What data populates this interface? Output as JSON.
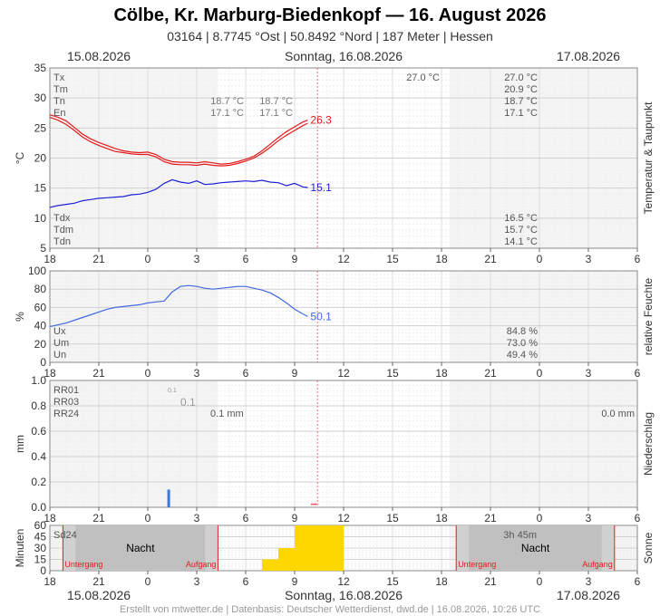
{
  "title": "Cölbe, Kr. Marburg-Biedenkopf  —  16. August 2026",
  "subtitle": "03164  |  8.7745 °Ost  |  50.8492 °Nord  |  187 Meter  |  Hessen",
  "dates": {
    "left": "15.08.2026",
    "center": "Sonntag, 16.08.2026",
    "right": "17.08.2026"
  },
  "footer": "Erstellt von mtwetter.de | Datenbasis: Deutscher Wetterdienst, dwd.de | 16.08.2026, 10:26 UTC",
  "colors": {
    "temp": "#e41a1c",
    "dew": "#1f1fd6",
    "humidity": "#4169e1",
    "precip": "#3c78d8",
    "sun": "#ffd700",
    "night": "#c6c6c6",
    "grid": "#e6e6e6",
    "minorgrid": "#f2f2f2",
    "nightline": "#e41a1c"
  },
  "chart_data": [
    {
      "type": "line",
      "ylabel": "°C",
      "right_label": "Temperatur & Taupunkt",
      "ylim": [
        5,
        35
      ],
      "yticks": [
        "5",
        "10",
        "15",
        "20",
        "25",
        "30",
        "35"
      ],
      "x_unit": "hours since 15.08.2026 18:00",
      "xlim": [
        0,
        36
      ],
      "xticks": [
        "18",
        "21",
        "0",
        "3",
        "6",
        "9",
        "12",
        "15",
        "18",
        "21",
        "0",
        "3",
        "6"
      ],
      "series": [
        {
          "x": [
            0,
            0.5,
            1,
            1.5,
            2,
            2.5,
            3,
            3.5,
            4,
            4.5,
            5,
            5.5,
            6,
            6.5,
            7,
            7.5,
            8,
            8.5,
            9,
            9.5,
            10,
            10.5,
            11,
            11.5,
            12,
            12.5,
            13,
            13.5,
            14,
            14.5,
            15,
            15.5,
            15.8
          ],
          "values": [
            27.2,
            26.8,
            26.2,
            25.1,
            24.0,
            23.2,
            22.6,
            22.1,
            21.6,
            21.2,
            21.0,
            20.9,
            21.0,
            20.6,
            19.8,
            19.4,
            19.3,
            19.3,
            19.2,
            19.4,
            19.2,
            19.0,
            19.1,
            19.4,
            19.8,
            20.3,
            21.2,
            22.3,
            23.4,
            24.4,
            25.2,
            26.0,
            26.3
          ]
        },
        {
          "x": [
            0,
            0.5,
            1,
            1.5,
            2,
            2.5,
            3,
            3.5,
            4,
            4.5,
            5,
            5.5,
            6,
            6.5,
            7,
            7.5,
            8,
            8.5,
            9,
            9.5,
            10,
            10.5,
            11,
            11.5,
            12,
            12.5,
            13,
            13.5,
            14,
            14.5,
            15,
            15.5,
            15.8
          ],
          "values": [
            26.8,
            26.3,
            25.6,
            24.6,
            23.5,
            22.7,
            22.1,
            21.6,
            21.1,
            20.9,
            20.7,
            20.6,
            20.6,
            20.2,
            19.4,
            19.0,
            18.9,
            18.9,
            18.8,
            19.0,
            18.8,
            18.7,
            18.8,
            19.1,
            19.5,
            20.0,
            20.8,
            21.8,
            22.9,
            23.8,
            24.6,
            25.4,
            25.8
          ]
        },
        {
          "x": [
            0,
            0.5,
            1,
            1.5,
            2,
            2.5,
            3,
            3.5,
            4,
            4.5,
            5,
            5.5,
            6,
            6.5,
            7,
            7.5,
            8,
            8.5,
            9,
            9.5,
            10,
            10.5,
            11,
            11.5,
            12,
            12.5,
            13,
            13.5,
            14,
            14.5,
            15,
            15.5,
            15.8
          ],
          "values": [
            11.8,
            12.1,
            12.3,
            12.5,
            12.9,
            13.1,
            13.3,
            13.4,
            13.5,
            13.6,
            13.9,
            14.0,
            14.3,
            14.8,
            15.8,
            16.4,
            16.0,
            15.8,
            16.2,
            15.6,
            15.7,
            15.9,
            16.0,
            16.1,
            16.2,
            16.1,
            16.3,
            16.0,
            15.9,
            15.4,
            15.8,
            15.2,
            15.1
          ]
        }
      ],
      "series_colors": [
        "#e41a1c",
        "#e41a1c",
        "#1f1fd6"
      ],
      "end_labels": [
        {
          "text": "26.3",
          "value": 26.3,
          "color": "#e41a1c"
        },
        {
          "text": "15.1",
          "value": 15.1,
          "color": "#1f1fd6"
        }
      ],
      "stats_top": [
        {
          "label": "Tx",
          "c1": "",
          "c2": "",
          "c3": "27.0 °C",
          "c4": "27.0 °C"
        },
        {
          "label": "Tm",
          "c1": "",
          "c2": "",
          "c3": "",
          "c4": "20.9 °C"
        },
        {
          "label": "Tn",
          "c1": "18.7 °C",
          "c2": "18.7 °C",
          "c3": "",
          "c4": "18.7 °C"
        },
        {
          "label": "En",
          "c1": "17.1 °C",
          "c2": "17.1 °C",
          "c3": "",
          "c4": "17.1 °C"
        }
      ],
      "stats_bottom": [
        {
          "label": "Tdx",
          "value": "16.5 °C"
        },
        {
          "label": "Tdm",
          "value": "15.7 °C"
        },
        {
          "label": "Tdn",
          "value": "14.1 °C"
        }
      ]
    },
    {
      "type": "line",
      "ylabel": "%",
      "right_label": "relative Feuchte",
      "ylim": [
        0,
        100
      ],
      "yticks": [
        "0",
        "20",
        "40",
        "60",
        "80",
        "100"
      ],
      "xlim": [
        0,
        36
      ],
      "xticks": [
        "18",
        "21",
        "0",
        "3",
        "6",
        "9",
        "12",
        "15",
        "18",
        "21",
        "0",
        "3",
        "6"
      ],
      "series": [
        {
          "x": [
            0,
            0.5,
            1,
            1.5,
            2,
            2.5,
            3,
            3.5,
            4,
            4.5,
            5,
            5.5,
            6,
            6.5,
            7,
            7.5,
            8,
            8.5,
            9,
            9.5,
            10,
            10.5,
            11,
            11.5,
            12,
            12.5,
            13,
            13.5,
            14,
            14.5,
            15,
            15.5,
            15.8
          ],
          "values": [
            39,
            41,
            43,
            46,
            49,
            52,
            55,
            58,
            60,
            61,
            62,
            63,
            65,
            66,
            67,
            77,
            83,
            84,
            83,
            81,
            80,
            81,
            82,
            83,
            83,
            81,
            79,
            76,
            71,
            65,
            58,
            53,
            50.1
          ]
        }
      ],
      "series_colors": [
        "#4169e1"
      ],
      "end_labels": [
        {
          "text": "50.1",
          "value": 50.1,
          "color": "#4169e1"
        }
      ],
      "stats": [
        {
          "label": "Ux",
          "value": "84.8 %"
        },
        {
          "label": "Um",
          "value": "73.0 %"
        },
        {
          "label": "Un",
          "value": "49.4 %"
        }
      ]
    },
    {
      "type": "bar",
      "ylabel": "mm",
      "right_label": "Niederschlag",
      "ylim": [
        0,
        1.0
      ],
      "yticks": [
        "0.0",
        "0.2",
        "0.4",
        "0.6",
        "0.8",
        "1.0"
      ],
      "xlim": [
        0,
        36
      ],
      "xticks": [
        "18",
        "21",
        "0",
        "3",
        "6",
        "9",
        "12",
        "15",
        "18",
        "21",
        "0",
        "3",
        "6"
      ],
      "bars": [
        {
          "x": 7.2,
          "value": 0.14
        }
      ],
      "stats": [
        {
          "label": "RR01",
          "small": "0.1"
        },
        {
          "label": "RR03",
          "mid": "0.1"
        },
        {
          "label": "RR24",
          "val1": "0.1 mm",
          "val2": "0.0 mm"
        }
      ]
    },
    {
      "type": "bar",
      "ylabel": "Minuten",
      "right_label": "Sonne",
      "ylim": [
        0,
        60
      ],
      "yticks": [
        "0",
        "15",
        "30",
        "45",
        "60"
      ],
      "xlim": [
        0,
        36
      ],
      "xticks": [
        "18",
        "21",
        "0",
        "3",
        "6",
        "9",
        "12",
        "15",
        "18",
        "21",
        "0",
        "3",
        "6"
      ],
      "bars": [
        {
          "hour": 6,
          "value": 0
        },
        {
          "hour": 7,
          "value": 15
        },
        {
          "hour": 8,
          "value": 30
        },
        {
          "hour": 9,
          "value": 60
        },
        {
          "hour": 10,
          "value": 60
        },
        {
          "hour": 11,
          "value": 60
        }
      ],
      "night_left": {
        "label": "Nacht",
        "sunset": "Untergang",
        "sunrise": "Aufgang"
      },
      "night_right": {
        "label": "Nacht",
        "sunset": "Untergang",
        "sunrise": "Aufgang"
      },
      "stats": [
        {
          "label": "Sd24",
          "value": "3h 45m"
        }
      ]
    }
  ]
}
